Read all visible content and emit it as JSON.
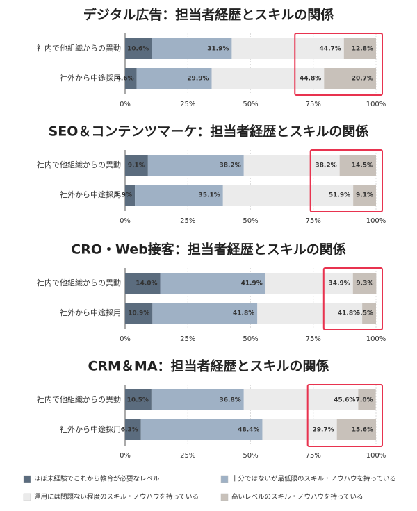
{
  "chart_data": [
    {
      "type": "bar",
      "title": "デジタル広告：担当者経歴とスキルの関係",
      "categories": [
        "社内で他組織からの異動",
        "社外から中途採用"
      ],
      "series": [
        {
          "values": [
            10.6,
            4.6
          ],
          "value_labels": [
            "10.6%",
            "4.6%"
          ]
        },
        {
          "values": [
            31.9,
            29.9
          ],
          "value_labels": [
            "31.9%",
            "29.9%"
          ]
        },
        {
          "values": [
            44.7,
            44.8
          ],
          "value_labels": [
            "44.7%",
            "44.8%"
          ]
        },
        {
          "values": [
            12.8,
            20.7
          ],
          "value_labels": [
            "12.8%",
            "20.7%"
          ]
        }
      ],
      "xlim": [
        0,
        100
      ],
      "xticks": [
        {
          "value": 0,
          "label": "0%"
        },
        {
          "value": 25,
          "label": "25%"
        },
        {
          "value": 50,
          "label": "50%"
        },
        {
          "value": 75,
          "label": "75%"
        },
        {
          "value": 100,
          "label": "100%"
        }
      ]
    },
    {
      "type": "bar",
      "title": "SEO＆コンテンツマーケ：担当者経歴とスキルの関係",
      "categories": [
        "社内で他組織からの異動",
        "社外から中途採用"
      ],
      "series": [
        {
          "values": [
            9.1,
            3.9
          ],
          "value_labels": [
            "9.1%",
            "3.9%"
          ]
        },
        {
          "values": [
            38.2,
            35.1
          ],
          "value_labels": [
            "38.2%",
            "35.1%"
          ]
        },
        {
          "values": [
            38.2,
            51.9
          ],
          "value_labels": [
            "38.2%",
            "51.9%"
          ]
        },
        {
          "values": [
            14.5,
            9.1
          ],
          "value_labels": [
            "14.5%",
            "9.1%"
          ]
        }
      ],
      "xlim": [
        0,
        100
      ],
      "xticks": [
        {
          "value": 0,
          "label": "0%"
        },
        {
          "value": 25,
          "label": "25%"
        },
        {
          "value": 50,
          "label": "50%"
        },
        {
          "value": 75,
          "label": "75%"
        },
        {
          "value": 100,
          "label": "100%"
        }
      ]
    },
    {
      "type": "bar",
      "title": "CRO・Web接客：担当者経歴とスキルの関係",
      "categories": [
        "社内で他組織からの異動",
        "社外から中途採用"
      ],
      "series": [
        {
          "values": [
            14.0,
            10.9
          ],
          "value_labels": [
            "14.0%",
            "10.9%"
          ]
        },
        {
          "values": [
            41.9,
            41.8
          ],
          "value_labels": [
            "41.9%",
            "41.8%"
          ]
        },
        {
          "values": [
            34.9,
            41.8
          ],
          "value_labels": [
            "34.9%",
            "41.8%"
          ]
        },
        {
          "values": [
            9.3,
            5.5
          ],
          "value_labels": [
            "9.3%",
            "5.5%"
          ]
        }
      ],
      "xlim": [
        0,
        100
      ],
      "xticks": [
        {
          "value": 0,
          "label": "0%"
        },
        {
          "value": 25,
          "label": "25%"
        },
        {
          "value": 50,
          "label": "50%"
        },
        {
          "value": 75,
          "label": "75%"
        },
        {
          "value": 100,
          "label": "100%"
        }
      ]
    },
    {
      "type": "bar",
      "title": "CRM＆MA：担当者経歴とスキルの関係",
      "categories": [
        "社内で他組織からの異動",
        "社外から中途採用"
      ],
      "series": [
        {
          "values": [
            10.5,
            6.3
          ],
          "value_labels": [
            "10.5%",
            "6.3%"
          ]
        },
        {
          "values": [
            36.8,
            48.4
          ],
          "value_labels": [
            "36.8%",
            "48.4%"
          ]
        },
        {
          "values": [
            45.6,
            29.7
          ],
          "value_labels": [
            "45.6%",
            "29.7%"
          ]
        },
        {
          "values": [
            7.0,
            15.6
          ],
          "value_labels": [
            "7.0%",
            "15.6%"
          ]
        }
      ],
      "xlim": [
        0,
        100
      ],
      "xticks": [
        {
          "value": 0,
          "label": "0%"
        },
        {
          "value": 25,
          "label": "25%"
        },
        {
          "value": 50,
          "label": "50%"
        },
        {
          "value": 75,
          "label": "75%"
        },
        {
          "value": 100,
          "label": "100%"
        }
      ]
    }
  ],
  "legend": [
    {
      "name": "ほぼ未経験でこれから教育が必要なレベル",
      "color": "#5b6c7e"
    },
    {
      "name": "十分ではないが最低限のスキル・ノウハウを持っている",
      "color": "#9fb1c5"
    },
    {
      "name": "運用には問題ない程度のスキル・ノウハウを持っている",
      "color": "#ebebeb"
    },
    {
      "name": "高いレベルのスキル・ノウハウを持っている",
      "color": "#c8c1ba"
    }
  ]
}
